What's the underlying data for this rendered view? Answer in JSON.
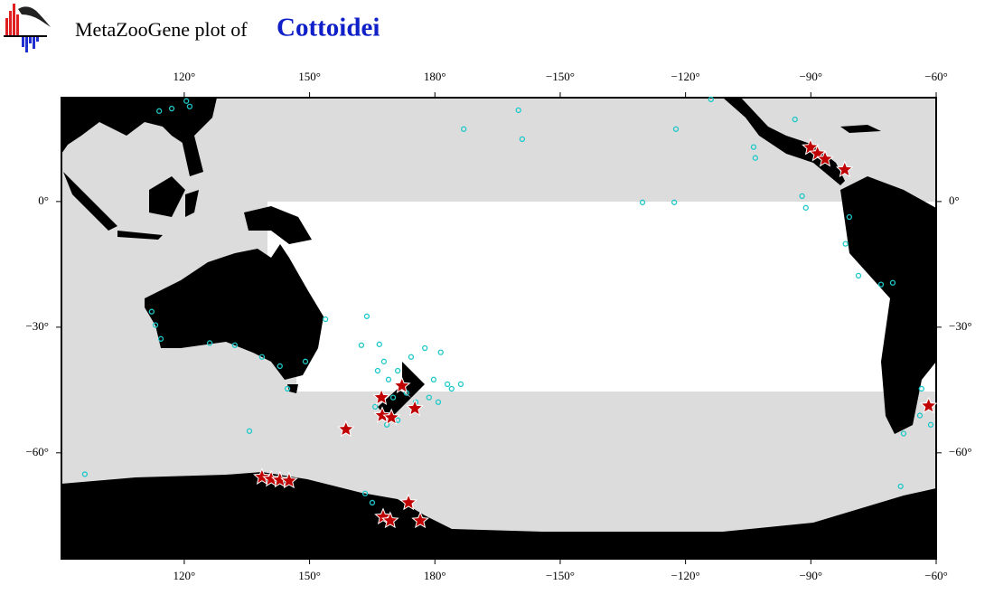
{
  "map": {
    "title_prefix": "MetaZooGene plot of",
    "taxon": "Cottoidei",
    "xlim": [
      90.6,
      300
    ],
    "ylim": [
      -85.3,
      24.8
    ],
    "xticks": [
      {
        "value": 120,
        "label": "120°"
      },
      {
        "value": 150,
        "label": "150°"
      },
      {
        "value": 180,
        "label": "180°"
      },
      {
        "value": 210,
        "label": "−150°"
      },
      {
        "value": 240,
        "label": "−120°"
      },
      {
        "value": 270,
        "label": "−90°"
      },
      {
        "value": 300,
        "label": "−60°"
      }
    ],
    "yticks": [
      {
        "value": 0,
        "label": "0°"
      },
      {
        "value": -30,
        "label": "−30°"
      },
      {
        "value": -60,
        "label": "−60°"
      }
    ],
    "points": {
      "color": "#1ec8c8",
      "lon": [
        114.0,
        117.0,
        120.5,
        121.3,
        200.0,
        200.9,
        186.9,
        237.7,
        246.1,
        256.3,
        256.7,
        266.2,
        267.9,
        268.8,
        229.7,
        237.3,
        279.2,
        278.3,
        281.4,
        286.8,
        289.6,
        112.2,
        113.1,
        114.4,
        126.1,
        132.1,
        138.6,
        142.9,
        144.7,
        149.0,
        153.8,
        163.7,
        162.4,
        135.6,
        163.3,
        165.0,
        296.5,
        298.7,
        292.2,
        296.1,
        96.2,
        291.5,
        166.7,
        167.8,
        168.9,
        171.1,
        174.3,
        177.6,
        181.4,
        179.7,
        183.0,
        186.2,
        184.0,
        178.6,
        180.8,
        165.7,
        171.1,
        168.5,
        175.4,
        166.3,
        170.0,
        173.2
      ],
      "lat": [
        21.6,
        22.2,
        24.0,
        22.7,
        21.8,
        14.9,
        17.3,
        17.3,
        24.4,
        13.0,
        10.4,
        19.6,
        1.3,
        -1.5,
        -0.2,
        -0.2,
        -3.7,
        -10.1,
        -17.7,
        -19.8,
        -19.4,
        -26.3,
        -29.5,
        -32.8,
        -33.8,
        -34.3,
        -37.1,
        -39.3,
        -44.7,
        -38.2,
        -28.1,
        -27.4,
        -34.3,
        -54.8,
        -69.7,
        -71.9,
        -44.7,
        -53.3,
        -55.4,
        -51.1,
        -65.1,
        -68.0,
        -34.1,
        -38.2,
        -42.5,
        -40.4,
        -37.1,
        -35.0,
        -36.0,
        -42.5,
        -43.6,
        -43.6,
        -44.7,
        -46.8,
        -47.9,
        -49.0,
        -52.2,
        -53.3,
        -47.9,
        -40.4,
        -46.8,
        -45.7
      ]
    },
    "stars": {
      "color": "#c00000",
      "lon": [
        269.9,
        271.6,
        273.4,
        278.1,
        298.2,
        158.7,
        167.2,
        172.1,
        175.2,
        167.4,
        169.6,
        138.6,
        140.8,
        142.9,
        145.1,
        173.7,
        167.6,
        169.3,
        176.5
      ],
      "lat": [
        12.9,
        11.4,
        10.1,
        7.6,
        -48.8,
        -54.4,
        -46.8,
        -44.0,
        -49.4,
        -51.1,
        -51.6,
        -65.8,
        -66.3,
        -66.5,
        -66.7,
        -71.9,
        -75.3,
        -76.2,
        -76.2
      ]
    }
  }
}
